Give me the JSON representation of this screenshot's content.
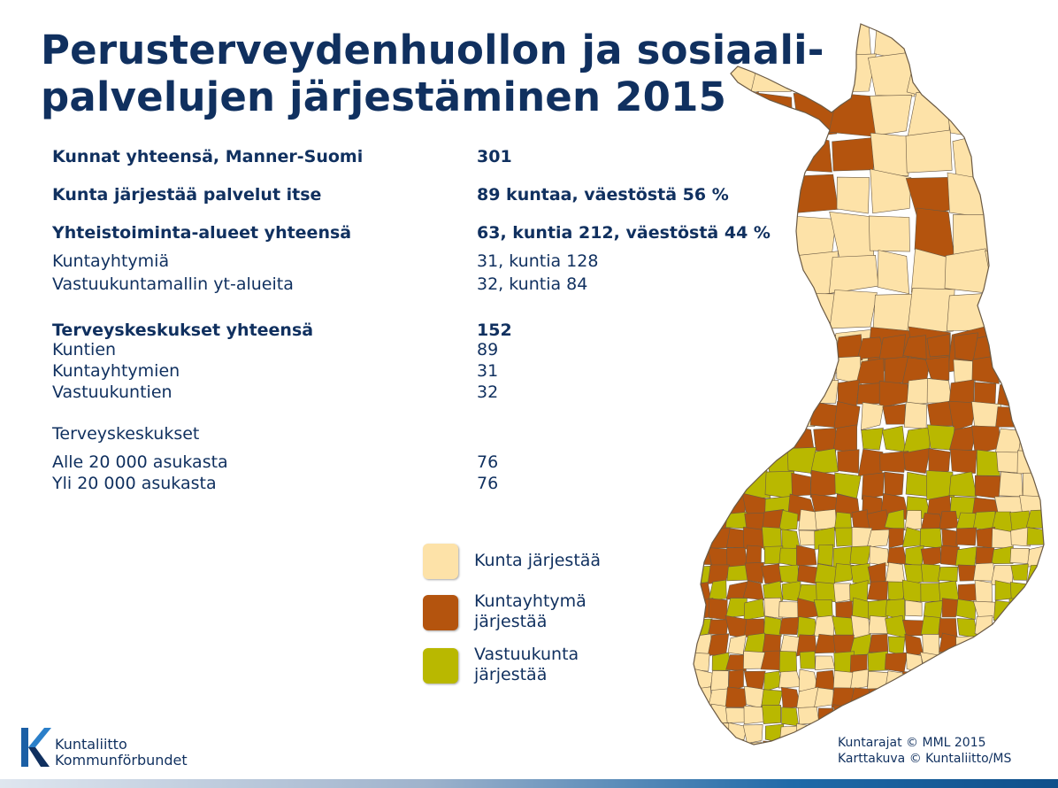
{
  "title": {
    "line1": "Perusterveydenhuollon ja sosiaali-",
    "line2": "palvelujen järjestäminen 2015"
  },
  "stats": [
    {
      "label": "Kunnat yhteensä, Manner-Suomi",
      "value": "301",
      "bold": true
    },
    {
      "label": "Kunta järjestää palvelut itse",
      "value": "89 kuntaa, väestöstä 56 %",
      "bold": true
    },
    {
      "label": "Yhteistoiminta-alueet yhteensä",
      "value": "63, kuntia 212, väestöstä 44 %",
      "bold": true
    },
    {
      "label": "Kuntayhtymiä",
      "value": "31, kuntia 128",
      "bold": false
    },
    {
      "label": "Vastuukuntamallin yt-alueita",
      "value": "32, kuntia 84",
      "bold": false
    },
    {
      "label": "Terveyskeskukset yhteensä",
      "value": "152",
      "bold": true
    },
    {
      "label": "Kuntien",
      "value": "89",
      "bold": false
    },
    {
      "label": "Kuntayhtymien",
      "value": "31",
      "bold": false
    },
    {
      "label": "Vastuukuntien",
      "value": "32",
      "bold": false
    },
    {
      "label": "Terveyskeskukset",
      "value": "",
      "bold": false
    },
    {
      "label": "Alle 20 000 asukasta",
      "value": "76",
      "bold": false
    },
    {
      "label": "Yli 20 000 asukasta",
      "value": "76",
      "bold": false
    }
  ],
  "legend": [
    {
      "label": "Kunta järjestää",
      "color": "#fde2a8"
    },
    {
      "label": "Kuntayhtymä järjestää",
      "color": "#b4540e"
    },
    {
      "label": "Vastuukunta järjestää",
      "color": "#b9b800"
    }
  ],
  "colors": {
    "kunta": "#fde2a8",
    "kuntayhtyma": "#b4540e",
    "vastuukunta": "#b9b800",
    "border": "#6b5a44",
    "title": "#10305f"
  },
  "credits": {
    "line1": "Kuntarajat © MML 2015",
    "line2": "Karttakuva © Kuntaliitto/MS"
  },
  "logo": {
    "line1": "Kuntaliitto",
    "line2": "Kommunförbundet",
    "icon": "kuntaliitto-k-logo-icon"
  }
}
